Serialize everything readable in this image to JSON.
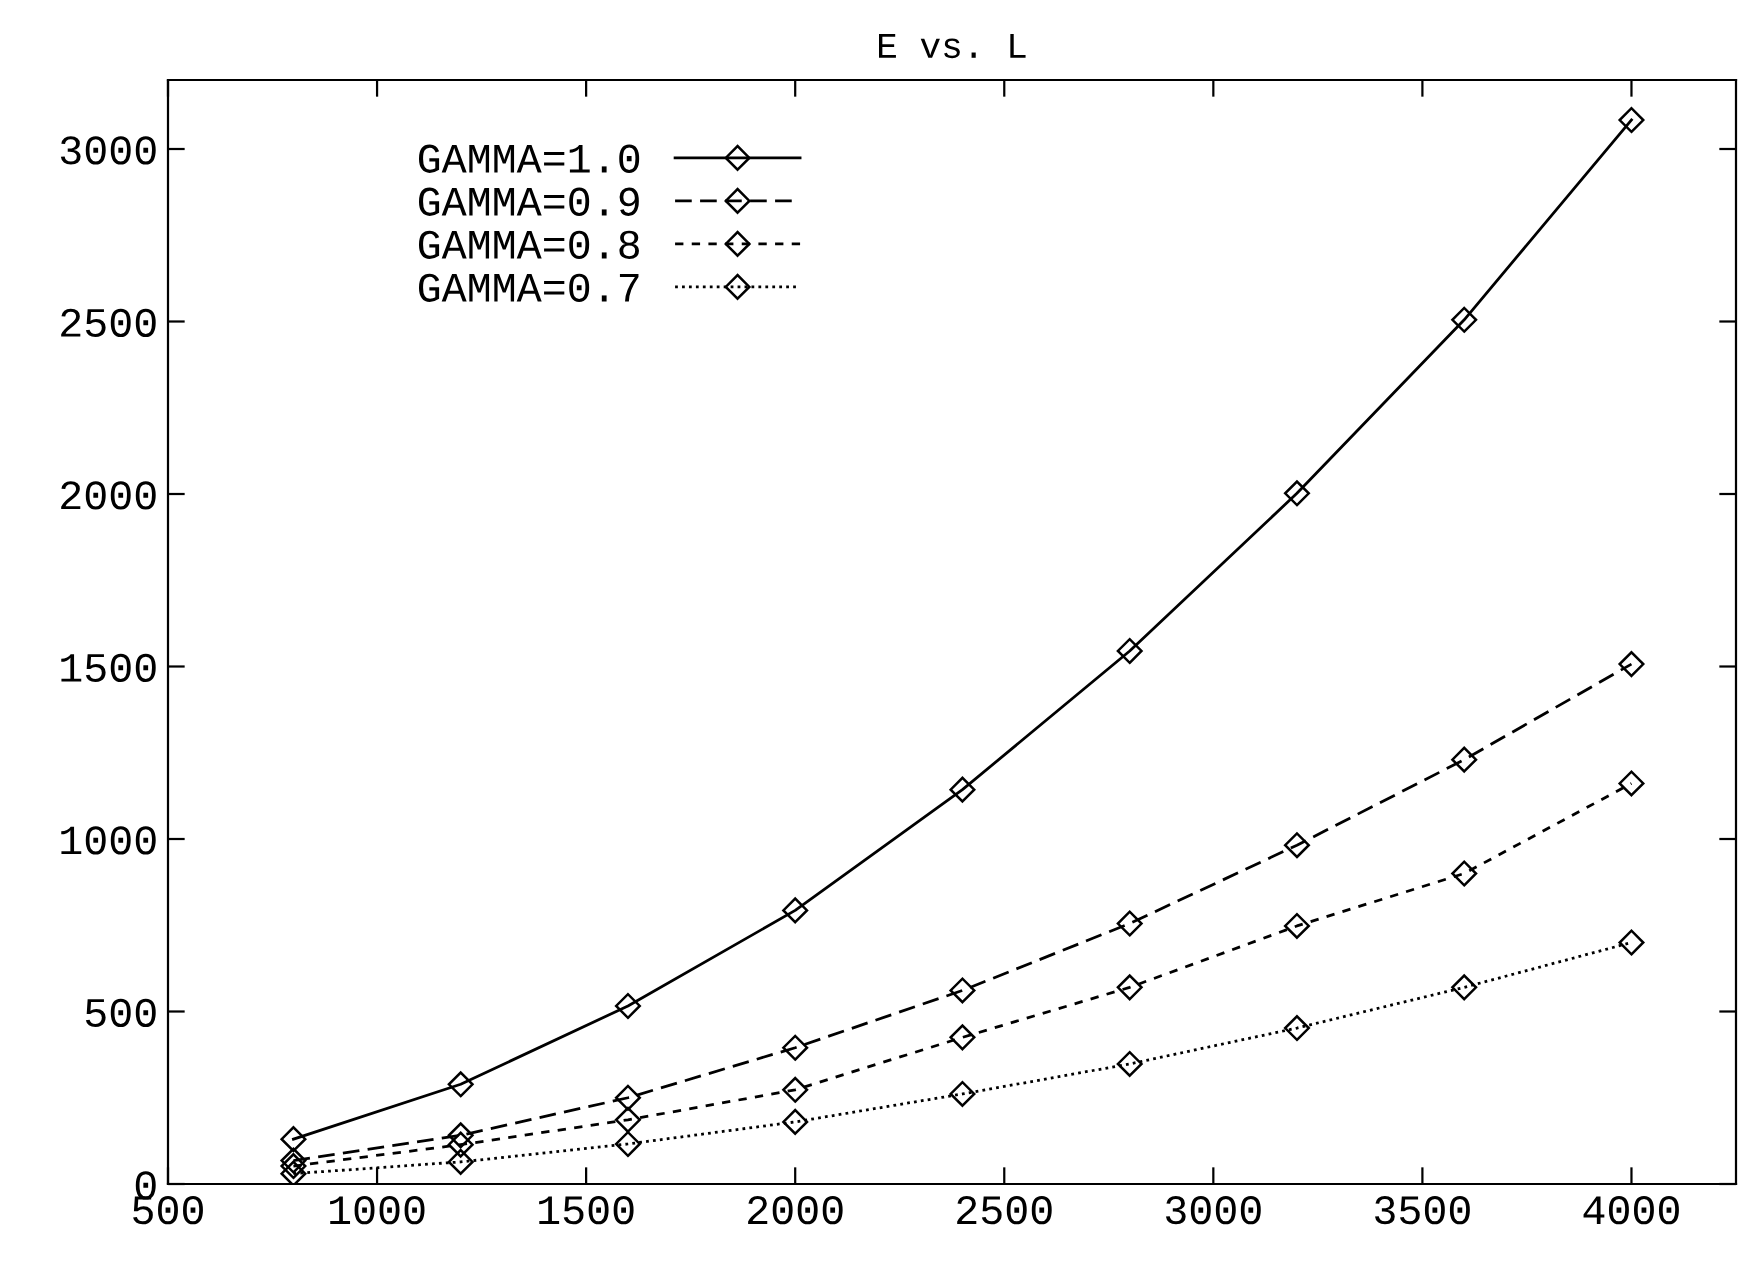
{
  "chart_data": {
    "type": "line",
    "title": "E vs. L",
    "xlim": [
      500,
      4250
    ],
    "ylim": [
      0,
      3200
    ],
    "xticks": [
      500,
      1000,
      1500,
      2000,
      2500,
      3000,
      3500,
      4000
    ],
    "yticks": [
      0,
      500,
      1000,
      1500,
      2000,
      2500,
      3000
    ],
    "x": [
      800,
      1200,
      1600,
      2000,
      2400,
      2800,
      3200,
      3600,
      4000
    ],
    "grid": false,
    "legend": "top left",
    "marker": "diamond",
    "series": [
      {
        "name": "GAMMA=1.0",
        "color": "#000000",
        "line_style": "solid",
        "values": [
          130,
          289,
          516,
          793,
          1143,
          1545,
          2002,
          2505,
          3084
        ]
      },
      {
        "name": "GAMMA=0.9",
        "color": "#000000",
        "line_style": "dashed",
        "values": [
          68,
          141,
          250,
          395,
          561,
          755,
          982,
          1230,
          1507
        ]
      },
      {
        "name": "GAMMA=0.8",
        "color": "#000000",
        "line_style": "dashed",
        "values": [
          52,
          114,
          186,
          273,
          425,
          570,
          748,
          900,
          1161
        ]
      },
      {
        "name": "GAMMA=0.7",
        "color": "#000000",
        "line_style": "dotted",
        "values": [
          30,
          64,
          116,
          180,
          261,
          348,
          452,
          570,
          700
        ]
      }
    ]
  }
}
